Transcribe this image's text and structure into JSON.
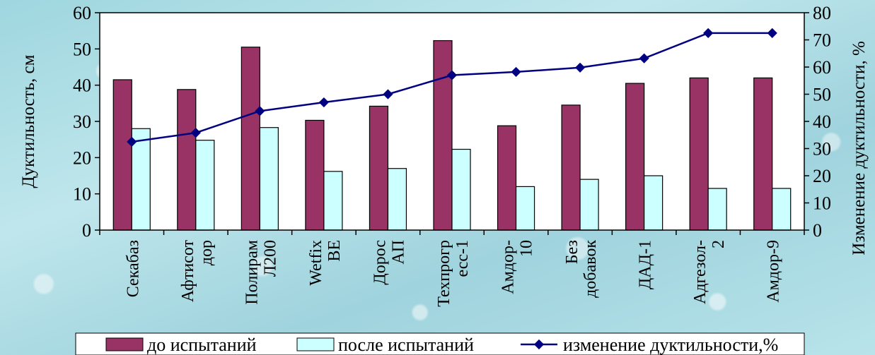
{
  "chart_data": {
    "type": "bar",
    "title": "",
    "categories": [
      [
        "Секабаз"
      ],
      [
        "Афтисот",
        "дор"
      ],
      [
        "Полирам",
        "Л200"
      ],
      [
        "Wetfix",
        "BE"
      ],
      [
        "Дорос",
        "АП"
      ],
      [
        "Техпрогр",
        "есс-1"
      ],
      [
        "Амдор-",
        "10"
      ],
      [
        "Без",
        "добавок"
      ],
      [
        "ДАД-1"
      ],
      [
        "Адгезол-",
        "2"
      ],
      [
        "Амдор-9"
      ]
    ],
    "series": [
      {
        "name": "до испытаний",
        "type": "bar",
        "axis": "left",
        "color": "#993366",
        "values": [
          41.5,
          38.8,
          50.5,
          30.3,
          34.2,
          52.3,
          28.8,
          34.5,
          40.5,
          42.0,
          42.0
        ]
      },
      {
        "name": "после испытаний",
        "type": "bar",
        "axis": "left",
        "color": "#ccffff",
        "values": [
          28.0,
          24.8,
          28.3,
          16.2,
          17.0,
          22.3,
          12.0,
          14.0,
          15.0,
          11.5,
          11.5
        ]
      },
      {
        "name": "изменение дуктильности,%",
        "type": "line",
        "axis": "right",
        "color": "#000080",
        "values": [
          32.5,
          35.8,
          43.8,
          47.0,
          50.0,
          57.0,
          58.2,
          59.8,
          63.2,
          72.5,
          72.5
        ]
      }
    ],
    "ylabel": "Дуктильность, см",
    "y2label": "Изменение дуктильности, %",
    "ylim": [
      0,
      60
    ],
    "yticks": [
      0,
      10,
      20,
      30,
      40,
      50,
      60
    ],
    "y2lim": [
      0,
      80
    ],
    "y2ticks": [
      0,
      10,
      20,
      30,
      40,
      50,
      60,
      70,
      80
    ],
    "grid": false,
    "legend_position": "bottom"
  }
}
